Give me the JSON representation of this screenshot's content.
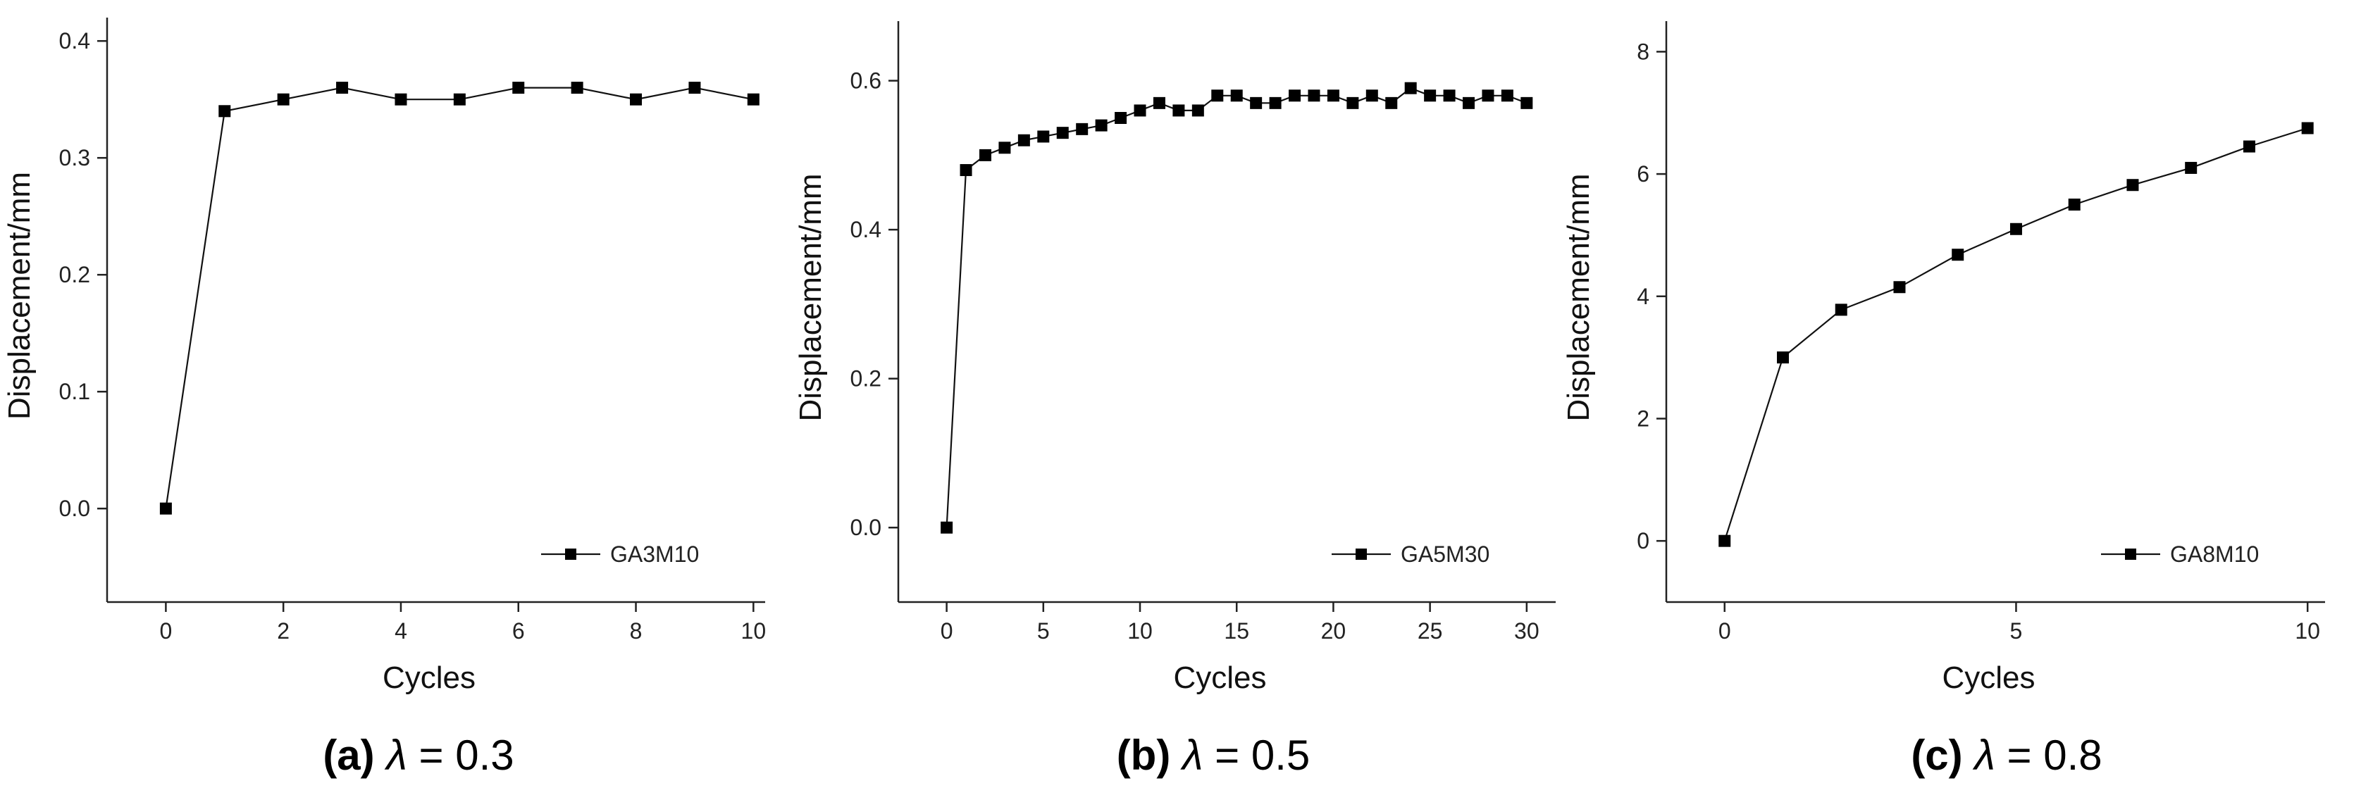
{
  "chart_data": [
    {
      "type": "line",
      "panel": "a",
      "caption": {
        "label": "(a)",
        "symbol": "λ",
        "rest": " = 0.3"
      },
      "xlabel": "Cycles",
      "ylabel": "Displacement/mm",
      "xlim": [
        -1,
        10.2
      ],
      "ylim": [
        -0.08,
        0.42
      ],
      "xticks": [
        0,
        2,
        4,
        6,
        8,
        10
      ],
      "yticks": [
        0.0,
        0.1,
        0.2,
        0.3,
        0.4
      ],
      "yticklabels": [
        "0.0",
        "0.1",
        "0.2",
        "0.3",
        "0.4"
      ],
      "legend": "bottom-right",
      "series": [
        {
          "name": "GA3M10",
          "x": [
            0,
            1,
            2,
            3,
            4,
            5,
            6,
            7,
            8,
            9,
            10
          ],
          "y": [
            0.0,
            0.34,
            0.35,
            0.36,
            0.35,
            0.35,
            0.36,
            0.36,
            0.35,
            0.36,
            0.35
          ]
        }
      ]
    },
    {
      "type": "line",
      "panel": "b",
      "caption": {
        "label": "(b)",
        "symbol": "λ",
        "rest": " = 0.5"
      },
      "xlabel": "Cycles",
      "ylabel": "Displacement/mm",
      "xlim": [
        -2.5,
        31.5
      ],
      "ylim": [
        -0.1,
        0.68
      ],
      "xticks": [
        0,
        5,
        10,
        15,
        20,
        25,
        30
      ],
      "yticks": [
        0.0,
        0.2,
        0.4,
        0.6
      ],
      "yticklabels": [
        "0.0",
        "0.2",
        "0.4",
        "0.6"
      ],
      "legend": "bottom-right",
      "series": [
        {
          "name": "GA5M30",
          "x": [
            0,
            1,
            2,
            3,
            4,
            5,
            6,
            7,
            8,
            9,
            10,
            11,
            12,
            13,
            14,
            15,
            16,
            17,
            18,
            19,
            20,
            21,
            22,
            23,
            24,
            25,
            26,
            27,
            28,
            29,
            30
          ],
          "y": [
            0.0,
            0.48,
            0.5,
            0.51,
            0.52,
            0.525,
            0.53,
            0.535,
            0.54,
            0.55,
            0.56,
            0.57,
            0.56,
            0.56,
            0.58,
            0.58,
            0.57,
            0.57,
            0.58,
            0.58,
            0.58,
            0.57,
            0.58,
            0.57,
            0.59,
            0.58,
            0.58,
            0.57,
            0.58,
            0.58,
            0.57
          ]
        }
      ]
    },
    {
      "type": "line",
      "panel": "c",
      "caption": {
        "label": "(c)",
        "symbol": "λ",
        "rest": " = 0.8"
      },
      "xlabel": "Cycles",
      "ylabel": "Displacement/mm",
      "xlim": [
        -1,
        10.3
      ],
      "ylim": [
        -1,
        8.5
      ],
      "xticks": [
        0,
        5,
        10
      ],
      "yticks": [
        0,
        2,
        4,
        6,
        8
      ],
      "yticklabels": [
        "0",
        "2",
        "4",
        "6",
        "8"
      ],
      "legend": "bottom-right",
      "series": [
        {
          "name": "GA8M10",
          "x": [
            0,
            1,
            2,
            3,
            4,
            5,
            6,
            7,
            8,
            9,
            10
          ],
          "y": [
            0.0,
            3.0,
            3.78,
            4.15,
            4.68,
            5.1,
            5.5,
            5.82,
            6.1,
            6.45,
            6.75
          ]
        }
      ]
    }
  ]
}
